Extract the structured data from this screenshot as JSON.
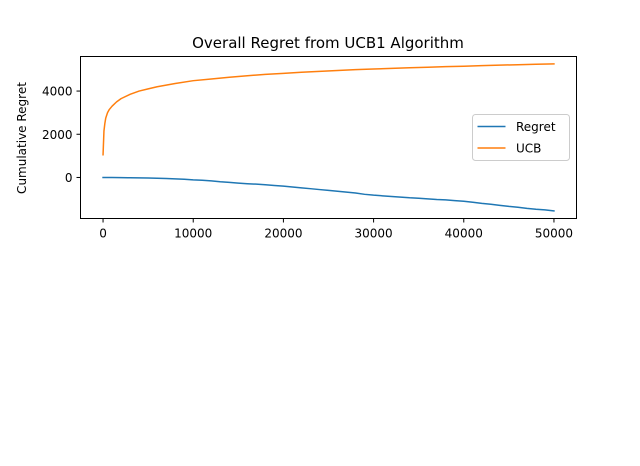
{
  "chart_data": {
    "type": "line",
    "title": "Overall Regret from UCB1 Algorithm",
    "xlabel": "",
    "ylabel": "Cumulative Regret",
    "xlim": [
      -2500,
      52500
    ],
    "ylim": [
      -1900,
      5600
    ],
    "xticks": [
      0,
      10000,
      20000,
      30000,
      40000,
      50000
    ],
    "xtick_labels": [
      "0",
      "10000",
      "20000",
      "30000",
      "40000",
      "50000"
    ],
    "yticks": [
      0,
      2000,
      4000
    ],
    "ytick_labels": [
      "0",
      "2000",
      "4000"
    ],
    "grid": false,
    "legend_position": "center-right",
    "series": [
      {
        "name": "Regret",
        "color": "#1f77b4",
        "x": [
          0,
          1000,
          2000,
          3000,
          4000,
          5000,
          6000,
          7000,
          8000,
          9000,
          10000,
          11000,
          12000,
          13000,
          14000,
          15000,
          16000,
          17000,
          18000,
          19000,
          20000,
          21000,
          22000,
          23000,
          24000,
          25000,
          26000,
          27000,
          28000,
          29000,
          30000,
          31000,
          32000,
          33000,
          34000,
          35000,
          36000,
          37000,
          38000,
          39000,
          40000,
          41000,
          42000,
          43000,
          44000,
          45000,
          46000,
          47000,
          48000,
          49000,
          50000
        ],
        "values": [
          0,
          0,
          -10,
          -15,
          -20,
          -25,
          -35,
          -50,
          -65,
          -80,
          -110,
          -130,
          -160,
          -200,
          -230,
          -260,
          -290,
          -310,
          -340,
          -370,
          -400,
          -440,
          -480,
          -520,
          -560,
          -600,
          -640,
          -680,
          -720,
          -780,
          -820,
          -850,
          -880,
          -910,
          -940,
          -960,
          -990,
          -1020,
          -1040,
          -1070,
          -1100,
          -1150,
          -1200,
          -1240,
          -1290,
          -1340,
          -1380,
          -1430,
          -1470,
          -1500,
          -1550
        ]
      },
      {
        "name": "UCB",
        "color": "#ff7f0e",
        "x": [
          0,
          100,
          200,
          300,
          500,
          700,
          1000,
          1500,
          2000,
          3000,
          4000,
          5000,
          6000,
          8000,
          10000,
          12000,
          14000,
          16000,
          18000,
          20000,
          22000,
          24000,
          26000,
          28000,
          30000,
          32000,
          34000,
          36000,
          38000,
          40000,
          42000,
          44000,
          46000,
          48000,
          50000
        ],
        "values": [
          1050,
          2150,
          2500,
          2750,
          3000,
          3150,
          3300,
          3500,
          3650,
          3850,
          4000,
          4100,
          4200,
          4350,
          4480,
          4560,
          4640,
          4710,
          4770,
          4820,
          4870,
          4910,
          4950,
          4990,
          5020,
          5050,
          5080,
          5100,
          5130,
          5150,
          5180,
          5200,
          5220,
          5240,
          5260
        ]
      }
    ]
  }
}
